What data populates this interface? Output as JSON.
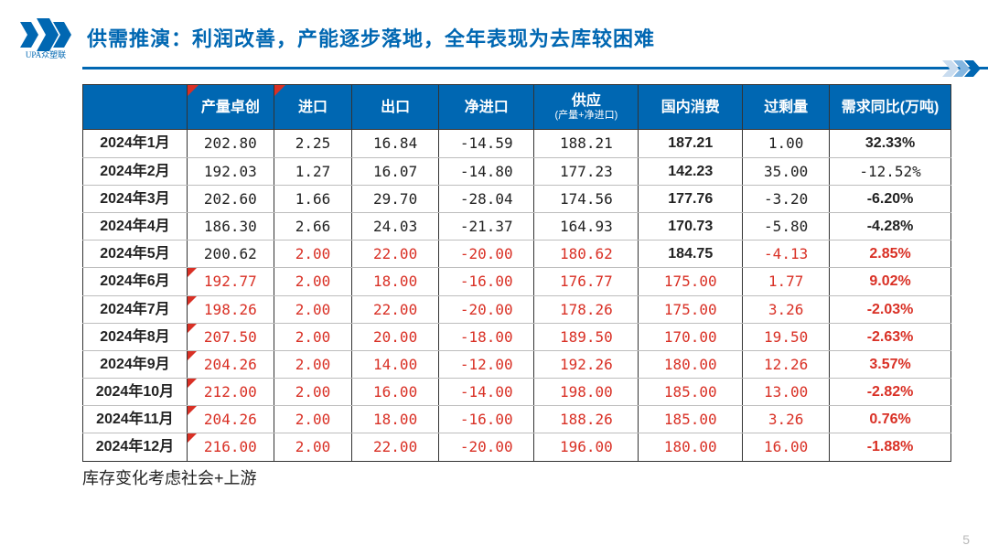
{
  "logo_text": "UPA众塑联",
  "title": "供需推演：利润改善，产能逐步落地，全年表现为去库较困难",
  "columns": [
    {
      "label": "",
      "wedge": false
    },
    {
      "label": "产量卓创",
      "wedge": true
    },
    {
      "label": "进口",
      "wedge": true
    },
    {
      "label": "出口",
      "wedge": false
    },
    {
      "label": "净进口",
      "wedge": false
    },
    {
      "label": "供应",
      "sub": "(产量+净进口)",
      "wedge": false
    },
    {
      "label": "国内消费",
      "wedge": false
    },
    {
      "label": "过剩量",
      "wedge": false
    },
    {
      "label": "需求同比(万吨)",
      "wedge": false
    }
  ],
  "col_widths": [
    "12%",
    "10%",
    "9%",
    "10%",
    "11%",
    "12%",
    "12%",
    "10%",
    "14%"
  ],
  "rows": [
    {
      "month": "2024年1月",
      "cells": [
        {
          "v": "202.80"
        },
        {
          "v": "2.25"
        },
        {
          "v": "16.84"
        },
        {
          "v": "-14.59"
        },
        {
          "v": "188.21"
        },
        {
          "v": "187.21",
          "cls": "xiao"
        },
        {
          "v": "1.00"
        },
        {
          "v": "32.33%",
          "cls": "bold"
        }
      ]
    },
    {
      "month": "2024年2月",
      "cells": [
        {
          "v": "192.03"
        },
        {
          "v": "1.27"
        },
        {
          "v": "16.07"
        },
        {
          "v": "-14.80"
        },
        {
          "v": "177.23"
        },
        {
          "v": "142.23",
          "cls": "xiao"
        },
        {
          "v": "35.00"
        },
        {
          "v": "-12.52%"
        }
      ]
    },
    {
      "month": "2024年3月",
      "cells": [
        {
          "v": "202.60"
        },
        {
          "v": "1.66"
        },
        {
          "v": "29.70"
        },
        {
          "v": "-28.04"
        },
        {
          "v": "174.56"
        },
        {
          "v": "177.76",
          "cls": "xiao"
        },
        {
          "v": "-3.20"
        },
        {
          "v": "-6.20%",
          "cls": "bold"
        }
      ]
    },
    {
      "month": "2024年4月",
      "cells": [
        {
          "v": "186.30"
        },
        {
          "v": "2.66"
        },
        {
          "v": "24.03"
        },
        {
          "v": "-21.37"
        },
        {
          "v": "164.93"
        },
        {
          "v": "170.73",
          "cls": "xiao"
        },
        {
          "v": "-5.80"
        },
        {
          "v": "-4.28%",
          "cls": "bold"
        }
      ]
    },
    {
      "month": "2024年5月",
      "cells": [
        {
          "v": "200.62"
        },
        {
          "v": "2.00",
          "cls": "red"
        },
        {
          "v": "22.00",
          "cls": "red"
        },
        {
          "v": "-20.00",
          "cls": "red"
        },
        {
          "v": "180.62",
          "cls": "red"
        },
        {
          "v": "184.75",
          "cls": "xiao"
        },
        {
          "v": "-4.13",
          "cls": "red"
        },
        {
          "v": "2.85%",
          "cls": "redbold"
        }
      ]
    },
    {
      "month": "2024年6月",
      "cells": [
        {
          "v": "192.77",
          "cls": "red",
          "wedge": true
        },
        {
          "v": "2.00",
          "cls": "red"
        },
        {
          "v": "18.00",
          "cls": "red"
        },
        {
          "v": "-16.00",
          "cls": "red"
        },
        {
          "v": "176.77",
          "cls": "red"
        },
        {
          "v": "175.00",
          "cls": "red"
        },
        {
          "v": "1.77",
          "cls": "red"
        },
        {
          "v": "9.02%",
          "cls": "redbold"
        }
      ]
    },
    {
      "month": "2024年7月",
      "cells": [
        {
          "v": "198.26",
          "cls": "red",
          "wedge": true
        },
        {
          "v": "2.00",
          "cls": "red"
        },
        {
          "v": "22.00",
          "cls": "red"
        },
        {
          "v": "-20.00",
          "cls": "red"
        },
        {
          "v": "178.26",
          "cls": "red"
        },
        {
          "v": "175.00",
          "cls": "red"
        },
        {
          "v": "3.26",
          "cls": "red"
        },
        {
          "v": "-2.03%",
          "cls": "redbold"
        }
      ]
    },
    {
      "month": "2024年8月",
      "cells": [
        {
          "v": "207.50",
          "cls": "red",
          "wedge": true
        },
        {
          "v": "2.00",
          "cls": "red"
        },
        {
          "v": "20.00",
          "cls": "red"
        },
        {
          "v": "-18.00",
          "cls": "red"
        },
        {
          "v": "189.50",
          "cls": "red"
        },
        {
          "v": "170.00",
          "cls": "red"
        },
        {
          "v": "19.50",
          "cls": "red"
        },
        {
          "v": "-2.63%",
          "cls": "redbold"
        }
      ]
    },
    {
      "month": "2024年9月",
      "cells": [
        {
          "v": "204.26",
          "cls": "red",
          "wedge": true
        },
        {
          "v": "2.00",
          "cls": "red"
        },
        {
          "v": "14.00",
          "cls": "red"
        },
        {
          "v": "-12.00",
          "cls": "red"
        },
        {
          "v": "192.26",
          "cls": "red"
        },
        {
          "v": "180.00",
          "cls": "red"
        },
        {
          "v": "12.26",
          "cls": "red"
        },
        {
          "v": "3.57%",
          "cls": "redbold"
        }
      ]
    },
    {
      "month": "2024年10月",
      "cells": [
        {
          "v": "212.00",
          "cls": "red",
          "wedge": true
        },
        {
          "v": "2.00",
          "cls": "red"
        },
        {
          "v": "16.00",
          "cls": "red"
        },
        {
          "v": "-14.00",
          "cls": "red"
        },
        {
          "v": "198.00",
          "cls": "red"
        },
        {
          "v": "185.00",
          "cls": "red"
        },
        {
          "v": "13.00",
          "cls": "red"
        },
        {
          "v": "-2.82%",
          "cls": "redbold"
        }
      ]
    },
    {
      "month": "2024年11月",
      "cells": [
        {
          "v": "204.26",
          "cls": "red",
          "wedge": true
        },
        {
          "v": "2.00",
          "cls": "red"
        },
        {
          "v": "18.00",
          "cls": "red"
        },
        {
          "v": "-16.00",
          "cls": "red"
        },
        {
          "v": "188.26",
          "cls": "red"
        },
        {
          "v": "185.00",
          "cls": "red"
        },
        {
          "v": "3.26",
          "cls": "red"
        },
        {
          "v": "0.76%",
          "cls": "redbold"
        }
      ]
    },
    {
      "month": "2024年12月",
      "cells": [
        {
          "v": "216.00",
          "cls": "red",
          "wedge": true
        },
        {
          "v": "2.00",
          "cls": "red"
        },
        {
          "v": "22.00",
          "cls": "red"
        },
        {
          "v": "-20.00",
          "cls": "red"
        },
        {
          "v": "196.00",
          "cls": "red"
        },
        {
          "v": "180.00",
          "cls": "red"
        },
        {
          "v": "16.00",
          "cls": "red"
        },
        {
          "v": "-1.88%",
          "cls": "redbold"
        }
      ]
    }
  ],
  "footer_note": "库存变化考虑社会+上游",
  "page_number": "5"
}
